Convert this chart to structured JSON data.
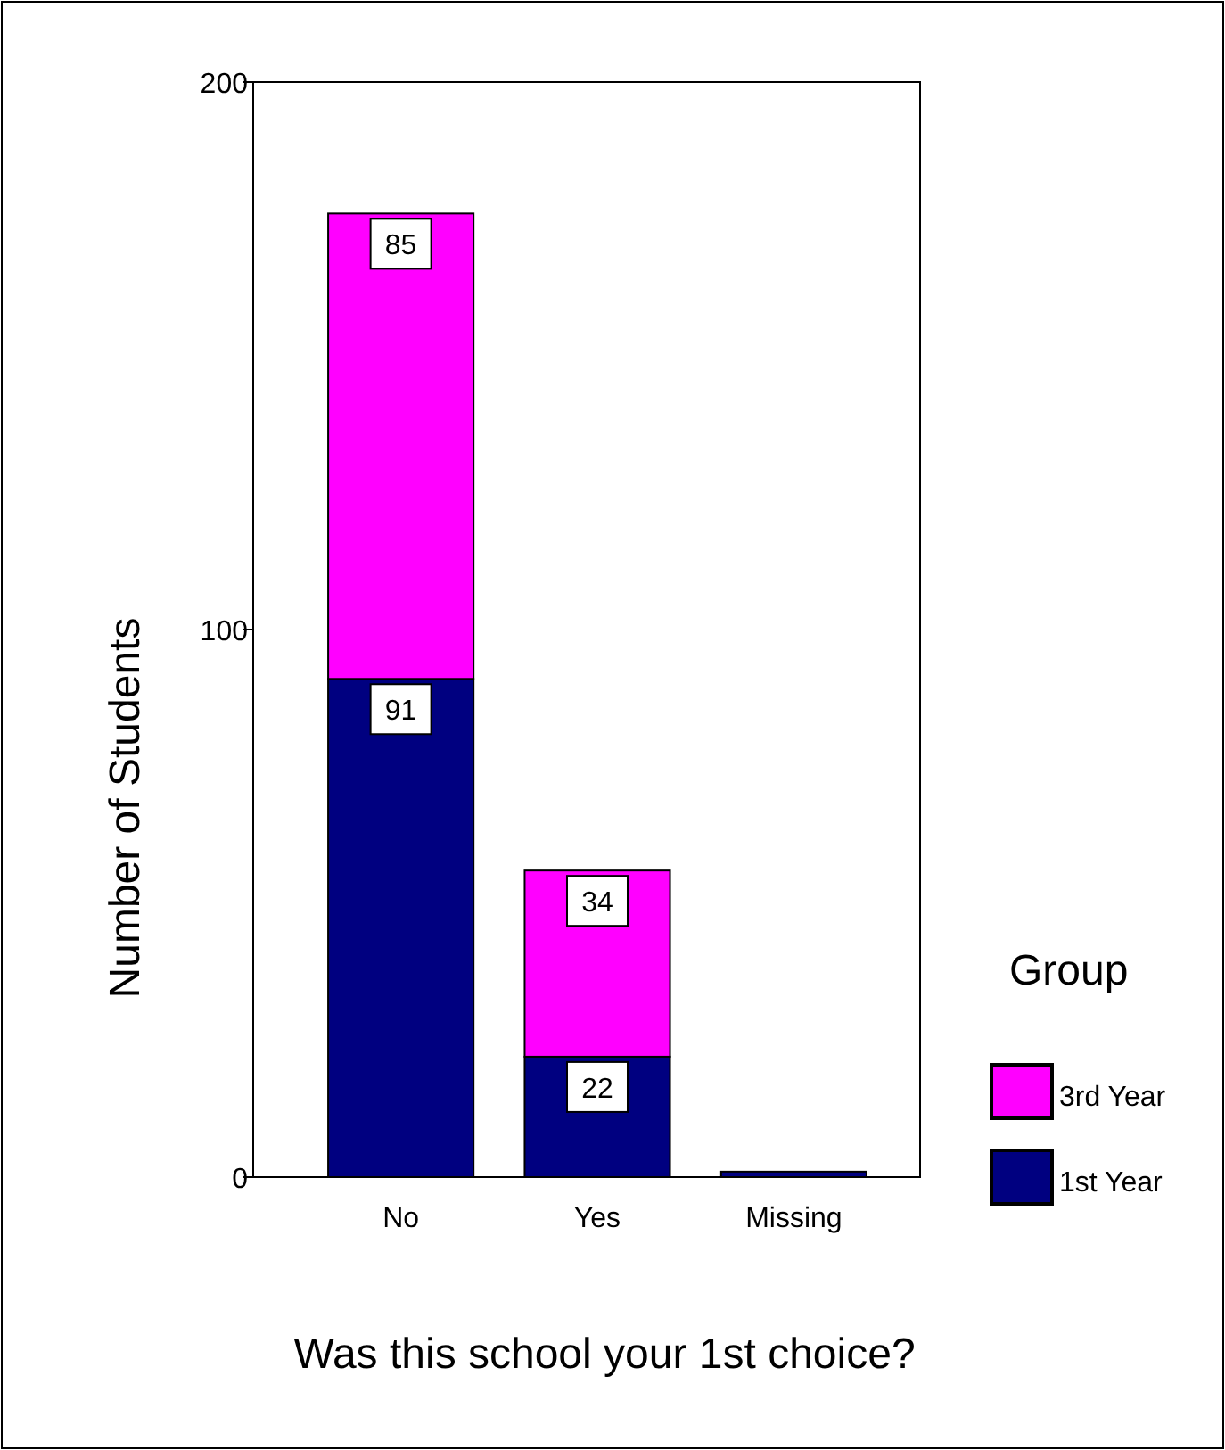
{
  "chart_data": {
    "type": "bar",
    "stacked": true,
    "xlabel": "Was this school your 1st choice?",
    "ylabel": "Number of Students",
    "legend_title": "Group",
    "categories": [
      "No",
      "Yes",
      "Missing"
    ],
    "series": [
      {
        "name": "1st Year",
        "color": "#000080",
        "values": [
          91,
          22,
          1
        ],
        "value_labels": [
          "91",
          "22",
          null
        ]
      },
      {
        "name": "3rd Year",
        "color": "#ff00ff",
        "values": [
          85,
          34,
          0
        ],
        "value_labels": [
          "85",
          "34",
          null
        ]
      }
    ],
    "ylim": [
      0,
      200
    ],
    "yticks": [
      0,
      100,
      200
    ],
    "grid": false,
    "legend": "right"
  }
}
